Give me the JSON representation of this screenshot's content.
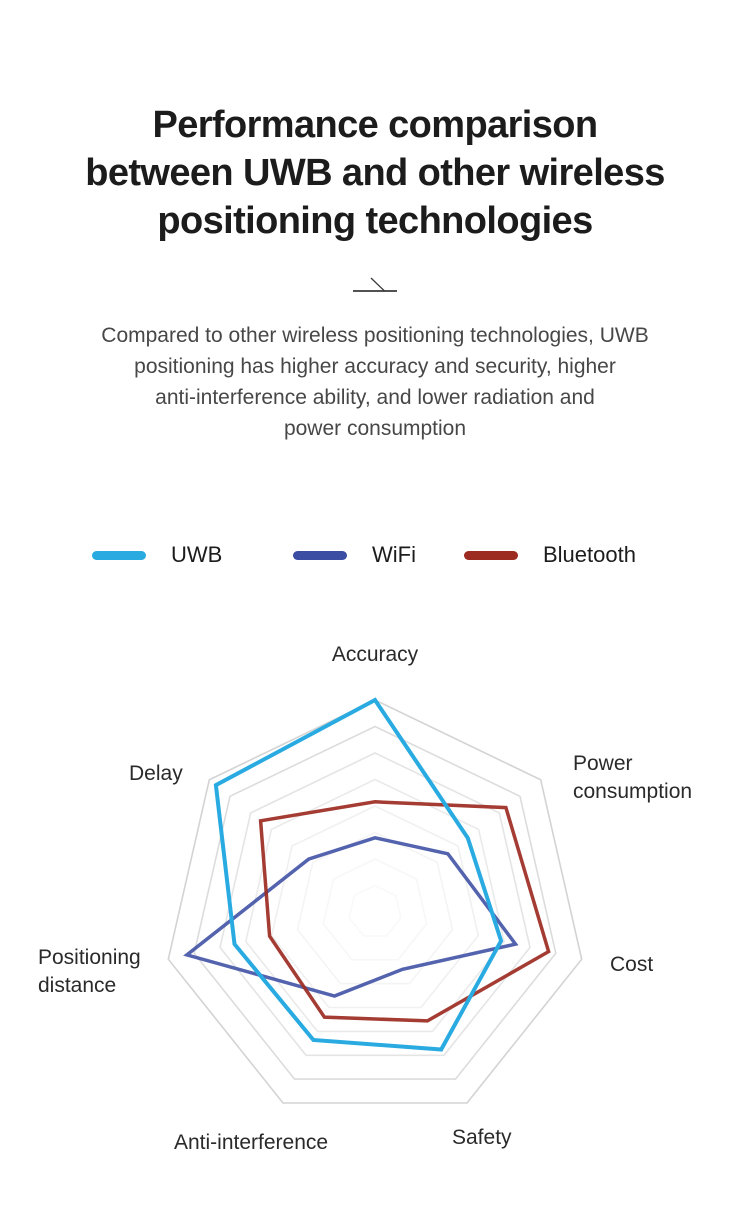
{
  "header": {
    "title": "Performance comparison\nbetween UWB and other wireless\npositioning technologies",
    "subtitle": "Compared to other wireless positioning technologies, UWB\npositioning has higher accuracy and security, higher\nanti-interference ability, and lower radiation and\npower consumption"
  },
  "legend": {
    "items": [
      {
        "label": "UWB",
        "color": "#29abe2"
      },
      {
        "label": "WiFi",
        "color": "#3b4da3"
      },
      {
        "label": "Bluetooth",
        "color": "#9c2b22"
      }
    ]
  },
  "chart_data": {
    "type": "radar",
    "title": "Performance comparison between UWB and other wireless positioning technologies",
    "categories": [
      "Accuracy",
      "Power consumption",
      "Cost",
      "Safety",
      "Anti-interference",
      "Positioning distance",
      "Delay"
    ],
    "axis_order": "clockwise from top",
    "scale_max": 5,
    "grid_rings": 8,
    "grid_shape": "heptagon",
    "grid_color": "#d9d9d9",
    "fill": "none",
    "legend_position": "top",
    "series": [
      {
        "name": "UWB",
        "color": "#29abe2",
        "values": [
          5.0,
          2.8,
          3.05,
          3.6,
          3.35,
          3.4,
          4.8
        ]
      },
      {
        "name": "WiFi",
        "color": "#3b4da3",
        "values": [
          1.75,
          2.2,
          3.4,
          1.5,
          2.2,
          4.55,
          2.0
        ]
      },
      {
        "name": "Bluetooth",
        "color": "#9c2b22",
        "values": [
          2.6,
          3.95,
          4.2,
          2.85,
          2.75,
          2.55,
          3.45
        ]
      }
    ]
  }
}
